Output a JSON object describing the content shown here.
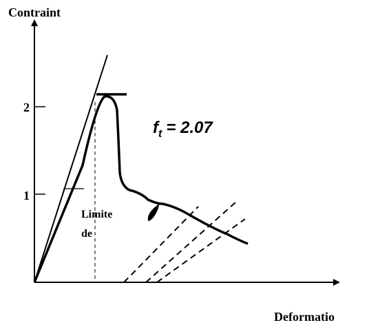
{
  "y_axis_label": "Contraint",
  "x_axis_label": "Deformatio",
  "y_ticks": [
    "2",
    "1"
  ],
  "annotation": {
    "symbol": "f",
    "subscript": "t",
    "rest": "= 2.07"
  },
  "region_label": [
    "Limite",
    "de"
  ]
}
